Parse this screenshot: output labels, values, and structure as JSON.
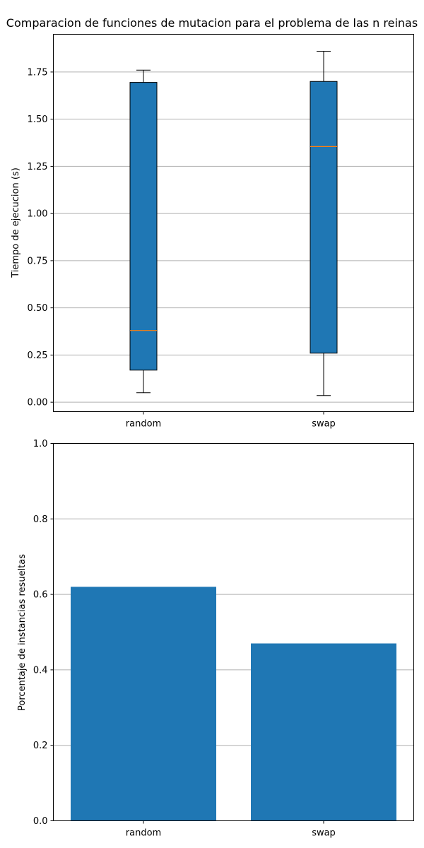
{
  "title": "Comparacion de funciones de mutacion para el problema de las n reinas",
  "chart_data": [
    {
      "type": "box",
      "categories": [
        "random",
        "swap"
      ],
      "ylabel": "Tiempo de ejecucion (s)",
      "xlabel": "",
      "ylim": [
        -0.05,
        1.95
      ],
      "yticks": [
        0.0,
        0.25,
        0.5,
        0.75,
        1.0,
        1.25,
        1.5,
        1.75
      ],
      "ytick_labels": [
        "0.00",
        "0.25",
        "0.50",
        "0.75",
        "1.00",
        "1.25",
        "1.50",
        "1.75"
      ],
      "grid": "y",
      "boxes": [
        {
          "name": "random",
          "whislo": 0.05,
          "q1": 0.17,
          "med": 0.38,
          "q3": 1.695,
          "whishi": 1.76
        },
        {
          "name": "swap",
          "whislo": 0.035,
          "q1": 0.26,
          "med": 1.355,
          "q3": 1.7,
          "whishi": 1.86
        }
      ],
      "colors": {
        "box": "#1f77b4",
        "median": "#ff7f0e",
        "edge": "#000000"
      }
    },
    {
      "type": "bar",
      "categories": [
        "random",
        "swap"
      ],
      "values": [
        0.62,
        0.47
      ],
      "ylabel": "Porcentaje de instancias resueltas",
      "xlabel": "",
      "ylim": [
        0.0,
        1.0
      ],
      "yticks": [
        0.0,
        0.2,
        0.4,
        0.6,
        0.8,
        1.0
      ],
      "ytick_labels": [
        "0.0",
        "0.2",
        "0.4",
        "0.6",
        "0.8",
        "1.0"
      ],
      "grid": "y",
      "colors": {
        "bar": "#1f77b4"
      }
    }
  ]
}
